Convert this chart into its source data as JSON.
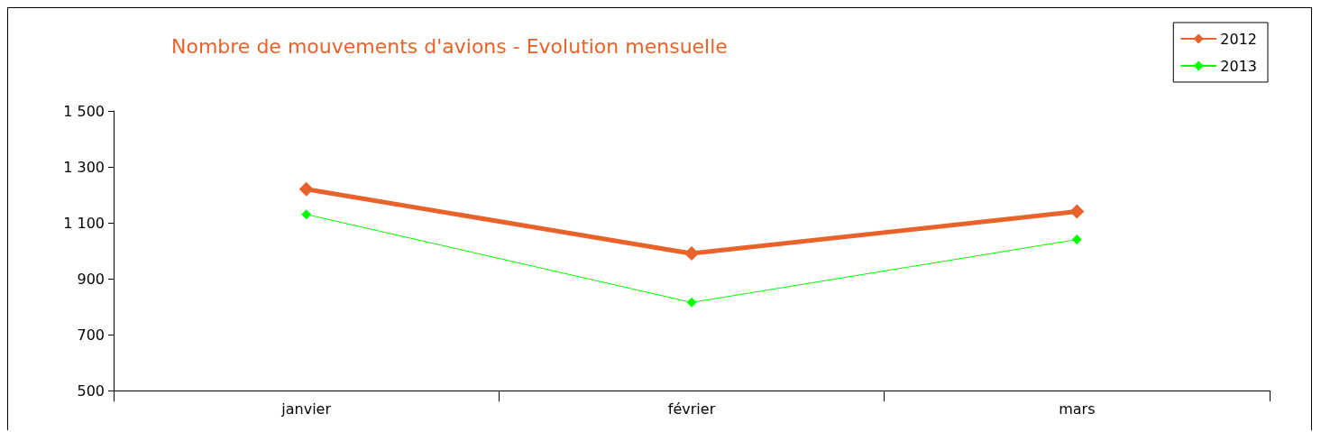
{
  "chart_data": {
    "type": "line",
    "title": "Nombre de mouvements d'avions - Evolution mensuelle",
    "categories": [
      "janvier",
      "février",
      "mars"
    ],
    "series": [
      {
        "name": "2012",
        "color": "#e8622a",
        "values": [
          1220,
          990,
          1140
        ]
      },
      {
        "name": "2013",
        "color": "#00ff00",
        "values": [
          1130,
          815,
          1040
        ]
      }
    ],
    "ylim": [
      500,
      1500
    ],
    "yticks": [
      {
        "value": 500,
        "label": "500"
      },
      {
        "value": 700,
        "label": "700"
      },
      {
        "value": 900,
        "label": "900"
      },
      {
        "value": 1100,
        "label": "1 100"
      },
      {
        "value": 1300,
        "label": "1 300"
      },
      {
        "value": 1500,
        "label": "1 500"
      }
    ],
    "grid": false,
    "legend": "top right",
    "marker": "diamond",
    "line_style": "solid"
  }
}
